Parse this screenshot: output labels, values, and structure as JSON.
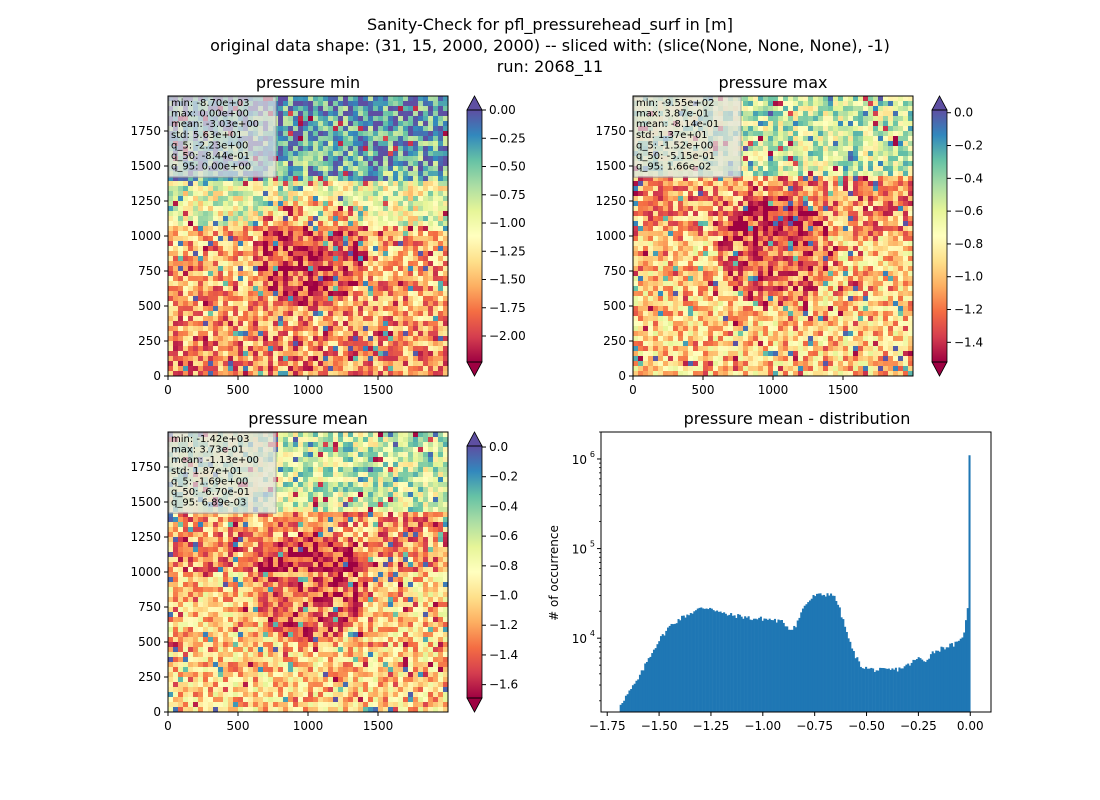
{
  "figure": {
    "suptitle_lines": [
      "Sanity-Check for pfl_pressurehead_surf in [m]",
      "original data shape: (31, 15, 2000, 2000) -- sliced with: (slice(None, None, None), -1)",
      "run: 2068_11"
    ]
  },
  "chart_data": [
    {
      "type": "heatmap",
      "title": "pressure min",
      "colormap": "Spectral",
      "x_ticks": [
        0,
        500,
        1000,
        1500
      ],
      "y_ticks": [
        0,
        250,
        500,
        750,
        1000,
        1250,
        1500,
        1750
      ],
      "xlim": [
        0,
        2000
      ],
      "ylim": [
        0,
        2000
      ],
      "stats": [
        "min: -8.70e+03",
        "max: 0.00e+00",
        "mean: -3.03e+00",
        "std: 5.63e+01",
        "q_5: -2.23e+00",
        "q_50: -8.44e-01",
        "q_95: 0.00e+00"
      ],
      "colorbar": {
        "vmin": -2.23,
        "vmax": 0.0,
        "ticks": [
          0.0,
          -0.25,
          -0.5,
          -0.75,
          -1.0,
          -1.25,
          -1.5,
          -1.75,
          -2.0
        ],
        "tick_labels": [
          "0.00",
          "−0.25",
          "−0.50",
          "−0.75",
          "−1.00",
          "−1.25",
          "−1.50",
          "−1.75",
          "−2.00"
        ],
        "extend": "both"
      }
    },
    {
      "type": "heatmap",
      "title": "pressure max",
      "colormap": "Spectral",
      "x_ticks": [
        0,
        500,
        1000,
        1500
      ],
      "y_ticks": [
        0,
        250,
        500,
        750,
        1000,
        1250,
        1500,
        1750
      ],
      "xlim": [
        0,
        2000
      ],
      "ylim": [
        0,
        2000
      ],
      "stats": [
        "min: -9.55e+02",
        "max: 3.87e-01",
        "mean: -8.14e-01",
        "std: 1.37e+01",
        "q_5: -1.52e+00",
        "q_50: -5.15e-01",
        "q_95: 1.66e-02"
      ],
      "colorbar": {
        "vmin": -1.52,
        "vmax": 0.0166,
        "ticks": [
          0.0,
          -0.2,
          -0.4,
          -0.6,
          -0.8,
          -1.0,
          -1.2,
          -1.4
        ],
        "tick_labels": [
          "0.0",
          "−0.2",
          "−0.4",
          "−0.6",
          "−0.8",
          "−1.0",
          "−1.2",
          "−1.4"
        ],
        "extend": "both"
      }
    },
    {
      "type": "heatmap",
      "title": "pressure mean",
      "colormap": "Spectral",
      "x_ticks": [
        0,
        500,
        1000,
        1500
      ],
      "y_ticks": [
        0,
        250,
        500,
        750,
        1000,
        1250,
        1500,
        1750
      ],
      "xlim": [
        0,
        2000
      ],
      "ylim": [
        0,
        2000
      ],
      "stats": [
        "min: -1.42e+03",
        "max: 3.73e-01",
        "mean: -1.13e+00",
        "std: 1.87e+01",
        "q_5: -1.69e+00",
        "q_50: -6.70e-01",
        "q_95: 6.89e-03"
      ],
      "colorbar": {
        "vmin": -1.69,
        "vmax": 0.00689,
        "ticks": [
          0.0,
          -0.2,
          -0.4,
          -0.6,
          -0.8,
          -1.0,
          -1.2,
          -1.4,
          -1.6
        ],
        "tick_labels": [
          "0.0",
          "−0.2",
          "−0.4",
          "−0.6",
          "−0.8",
          "−1.0",
          "−1.2",
          "−1.4",
          "−1.6"
        ],
        "extend": "both"
      }
    },
    {
      "type": "bar",
      "title": "pressure mean - distribution",
      "xlabel": "",
      "ylabel": "# of occurrence",
      "y_scale": "log",
      "xlim": [
        -1.78,
        0.1
      ],
      "ylim": [
        1500,
        2000000
      ],
      "bar_color": "#1f77b4",
      "x_ticks": [
        -1.75,
        -1.5,
        -1.25,
        -1.0,
        -0.75,
        -0.5,
        -0.25,
        0.0
      ],
      "x_tick_labels": [
        "−1.75",
        "−1.50",
        "−1.25",
        "−1.00",
        "−0.75",
        "−0.50",
        "−0.25",
        "0.00"
      ],
      "y_ticks": [
        10000,
        100000,
        1000000
      ],
      "y_tick_labels": [
        [
          "10",
          "4"
        ],
        [
          "10",
          "5"
        ],
        [
          "10",
          "6"
        ]
      ],
      "bin_range": [
        -1.69,
        0.0
      ],
      "profile": [
        [
          -1.69,
          1800
        ],
        [
          -1.65,
          2400
        ],
        [
          -1.6,
          3500
        ],
        [
          -1.55,
          6000
        ],
        [
          -1.5,
          9500
        ],
        [
          -1.45,
          13500
        ],
        [
          -1.4,
          16500
        ],
        [
          -1.35,
          19000
        ],
        [
          -1.3,
          21500
        ],
        [
          -1.25,
          22000
        ],
        [
          -1.2,
          19000
        ],
        [
          -1.15,
          18000
        ],
        [
          -1.1,
          17500
        ],
        [
          -1.05,
          16500
        ],
        [
          -1.0,
          16500
        ],
        [
          -0.95,
          16000
        ],
        [
          -0.9,
          15000
        ],
        [
          -0.87,
          12500
        ],
        [
          -0.84,
          14000
        ],
        [
          -0.8,
          23000
        ],
        [
          -0.75,
          30000
        ],
        [
          -0.7,
          30500
        ],
        [
          -0.67,
          32000
        ],
        [
          -0.64,
          25000
        ],
        [
          -0.6,
          12500
        ],
        [
          -0.57,
          7500
        ],
        [
          -0.53,
          5000
        ],
        [
          -0.5,
          4600
        ],
        [
          -0.45,
          4400
        ],
        [
          -0.4,
          4400
        ],
        [
          -0.35,
          4500
        ],
        [
          -0.3,
          5000
        ],
        [
          -0.25,
          6000
        ],
        [
          -0.22,
          5500
        ],
        [
          -0.18,
          7000
        ],
        [
          -0.12,
          8000
        ],
        [
          -0.08,
          8500
        ],
        [
          -0.05,
          9000
        ],
        [
          -0.03,
          12000
        ],
        [
          -0.015,
          18000
        ],
        [
          -0.005,
          35000
        ],
        [
          0.0,
          1100000
        ]
      ]
    }
  ]
}
